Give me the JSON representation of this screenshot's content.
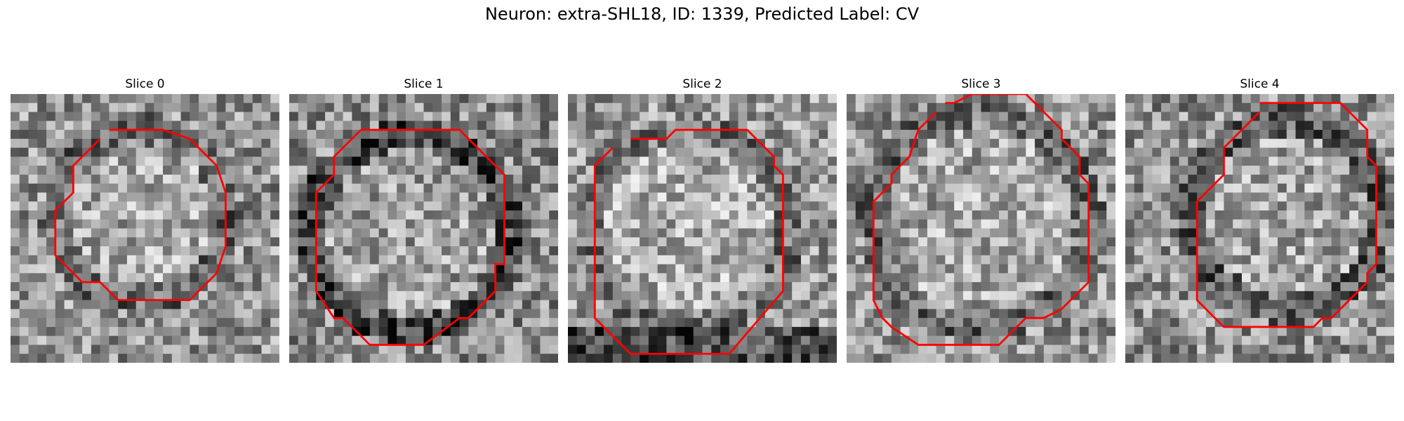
{
  "figure": {
    "title": "Neuron: extra-SHL18, ID: 1339, Predicted Label: CV",
    "colormap": "gray",
    "grid_size": 30,
    "contour_color": "#ff0000"
  },
  "panels": [
    {
      "title": "Slice 0",
      "image_description": "grayscale noisy crop with soma, red contour outline"
    },
    {
      "title": "Slice 1",
      "image_description": "grayscale noisy crop with soma and dark ring, red contour outline"
    },
    {
      "title": "Slice 2",
      "image_description": "grayscale noisy crop with bright soma, red contour outline"
    },
    {
      "title": "Slice 3",
      "image_description": "grayscale noisy crop with large soma, red contour outline"
    },
    {
      "title": "Slice 4",
      "image_description": "grayscale noisy crop with soma offset right, red contour outline"
    }
  ]
}
